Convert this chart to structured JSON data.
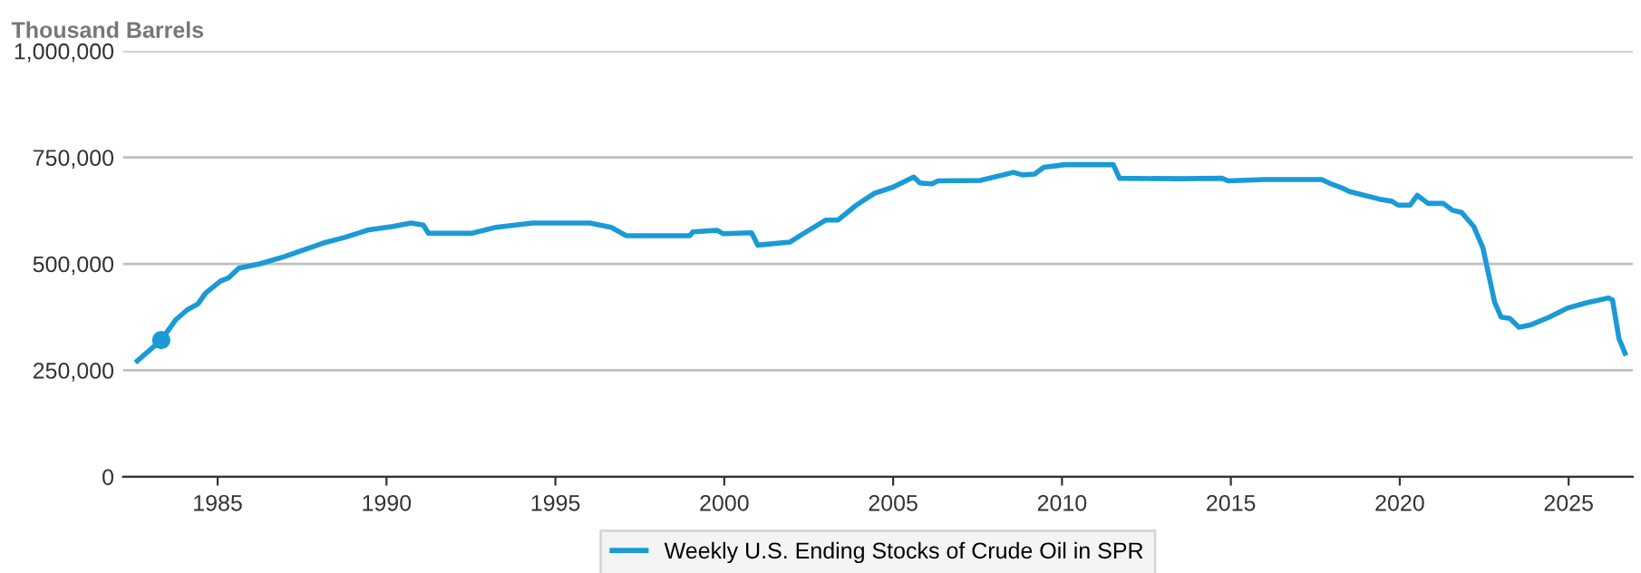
{
  "chart_data": {
    "type": "line",
    "ylabel": "Thousand Barrels",
    "x": [
      1982.62,
      1983.33,
      1983.75,
      1984.1,
      1984.42,
      1984.64,
      1985.09,
      1985.32,
      1985.63,
      1986.25,
      1986.97,
      1987.51,
      1988.13,
      1988.76,
      1989.48,
      1990.19,
      1990.73,
      1991.09,
      1991.24,
      1992.53,
      1993.24,
      1994.32,
      1996.02,
      1996.65,
      1997.1,
      1997.9,
      1998.98,
      1999.07,
      1999.78,
      1999.96,
      2000.81,
      2000.99,
      2001.94,
      2002.38,
      2003.01,
      2003.37,
      2003.91,
      2004.45,
      2004.99,
      2005.61,
      2005.79,
      2006.15,
      2006.33,
      2007.58,
      2008.56,
      2008.83,
      2009.19,
      2009.46,
      2010.09,
      2011.52,
      2011.7,
      2013.49,
      2014.74,
      2014.92,
      2016.0,
      2017.69,
      2017.96,
      2018.33,
      2018.51,
      2019.4,
      2019.77,
      2019.95,
      2020.31,
      2020.52,
      2020.84,
      2021.29,
      2021.56,
      2021.83,
      2022.19,
      2022.46,
      2022.81,
      2023.0,
      2023.26,
      2023.53,
      2023.89,
      2024.43,
      2024.96,
      2025.5,
      2026.18,
      2026.3,
      2026.49,
      2026.67
    ],
    "series": [
      {
        "name": "Weekly U.S. Ending Stocks of Crude Oil in SPR",
        "color": "#1a9ad6",
        "values": [
          272000,
          321000,
          368000,
          392000,
          406000,
          431000,
          460000,
          467000,
          490000,
          500000,
          517000,
          532000,
          549000,
          562000,
          580000,
          588000,
          596000,
          591000,
          572000,
          572000,
          586000,
          596000,
          596000,
          586000,
          566000,
          566000,
          566000,
          575000,
          579000,
          571000,
          573000,
          544000,
          551000,
          573000,
          603000,
          603000,
          638000,
          666000,
          680000,
          704000,
          690000,
          688000,
          695000,
          696000,
          715000,
          709000,
          711000,
          727000,
          733000,
          733000,
          701000,
          700000,
          701000,
          695000,
          698000,
          698000,
          688000,
          677000,
          670000,
          652000,
          647000,
          638000,
          638000,
          661000,
          642000,
          642000,
          626000,
          621000,
          588000,
          538000,
          410000,
          375000,
          372000,
          351000,
          357000,
          375000,
          396000,
          408000,
          420000,
          415000,
          325000,
          290000
        ]
      },
      {
        "type": "scatter",
        "marker": "circle",
        "color": "#1a9ad6",
        "x": [
          1983.33
        ],
        "values": [
          321000
        ]
      }
    ],
    "xlim": [
      1982.2,
      2026.9
    ],
    "xticks": [
      1985,
      1990,
      1995,
      2000,
      2005,
      2010,
      2015,
      2020,
      2025
    ],
    "ylim": [
      0,
      1000000
    ],
    "yticks": [
      0,
      {
        "value": 250000,
        "label": "250,000"
      },
      {
        "value": 500000,
        "label": "500,000"
      },
      {
        "value": 750000,
        "label": "750,000"
      },
      {
        "value": 1000000,
        "label": "1,000,000"
      }
    ],
    "grid": "y",
    "legend": "bottom",
    "marker": "none",
    "line_style": "solid"
  }
}
